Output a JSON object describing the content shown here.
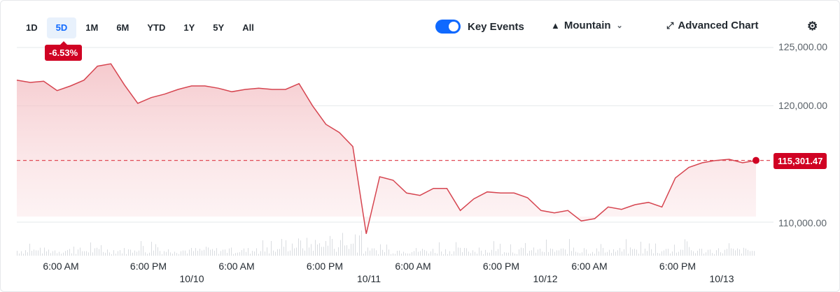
{
  "ranges": [
    "1D",
    "5D",
    "1M",
    "6M",
    "YTD",
    "1Y",
    "5Y",
    "All"
  ],
  "active_range": "5D",
  "toolbar": {
    "key_events": "Key Events",
    "chart_type": "Mountain",
    "advanced": "Advanced Chart"
  },
  "change_badge": "-6.53%",
  "price_badge": "115,301.47",
  "colors": {
    "line": "#d64550",
    "accent": "#0f69ff",
    "badge": "#d00223"
  },
  "chart_data": {
    "type": "area",
    "y_ticks": [
      "125,000.00",
      "120,000.00",
      "110,000.00"
    ],
    "ylim": [
      107500,
      126000
    ],
    "reference_value": 115301.47,
    "x_ticks": [
      {
        "label": "6:00 AM"
      },
      {
        "label": "6:00 PM"
      },
      {
        "label": "6:00 AM"
      },
      {
        "label": "6:00 PM"
      },
      {
        "label": "6:00 AM"
      },
      {
        "label": "6:00 PM"
      },
      {
        "label": "6:00 AM"
      },
      {
        "label": "6:00 PM"
      }
    ],
    "date_labels": [
      "10/10",
      "10/11",
      "10/12",
      "10/13"
    ],
    "values": [
      122200,
      122000,
      122100,
      121300,
      121700,
      122200,
      123400,
      123600,
      121800,
      120200,
      120700,
      121000,
      121400,
      121700,
      121700,
      121500,
      121200,
      121400,
      121500,
      121400,
      121400,
      121900,
      120000,
      118400,
      117700,
      116500,
      109000,
      113900,
      113600,
      112500,
      112300,
      112900,
      112900,
      111000,
      112000,
      112600,
      112500,
      112500,
      112100,
      111000,
      110800,
      111000,
      110100,
      110300,
      111300,
      111100,
      111500,
      111700,
      111300,
      113800,
      114700,
      115100,
      115300,
      115400,
      115100,
      115300
    ]
  }
}
